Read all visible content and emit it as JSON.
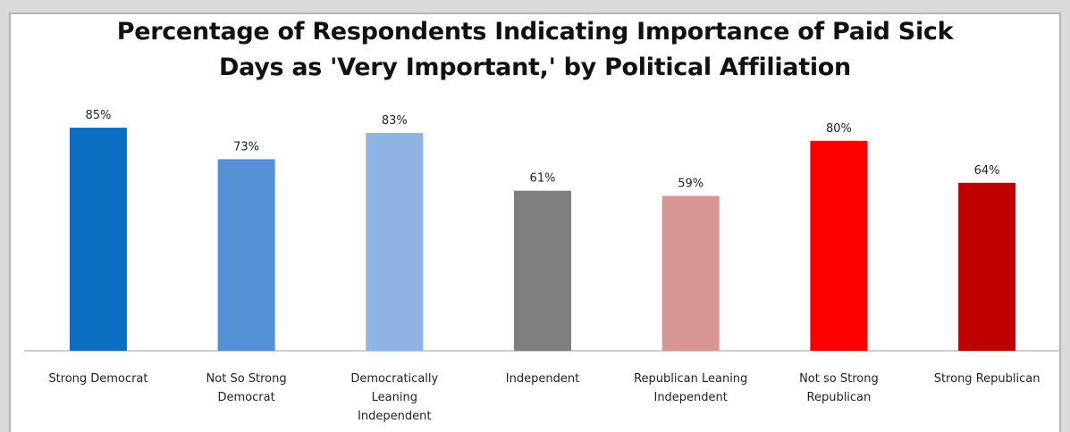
{
  "chart_data": {
    "type": "bar",
    "title_lines": [
      "Percentage of Respondents Indicating Importance of Paid Sick",
      "Days as 'Very Important,' by Political Affiliation"
    ],
    "categories": [
      [
        "Strong Democrat"
      ],
      [
        "Not So Strong",
        "Democrat"
      ],
      [
        "Democratically",
        "Leaning",
        "Independent"
      ],
      [
        "Independent"
      ],
      [
        "Republican Leaning",
        "Independent"
      ],
      [
        "Not so Strong",
        "Republican"
      ],
      [
        "Strong Republican"
      ]
    ],
    "values": [
      85,
      73,
      83,
      61,
      59,
      80,
      64
    ],
    "value_labels": [
      "85%",
      "73%",
      "83%",
      "61%",
      "59%",
      "80%",
      "64%"
    ],
    "bar_colors": [
      "#0b6fc1",
      "#5590d6",
      "#8fb3e3",
      "#7f7f7f",
      "#d99594",
      "#ff0000",
      "#c00000"
    ],
    "ylim": [
      0,
      100
    ],
    "grid": false,
    "legend": "none"
  }
}
